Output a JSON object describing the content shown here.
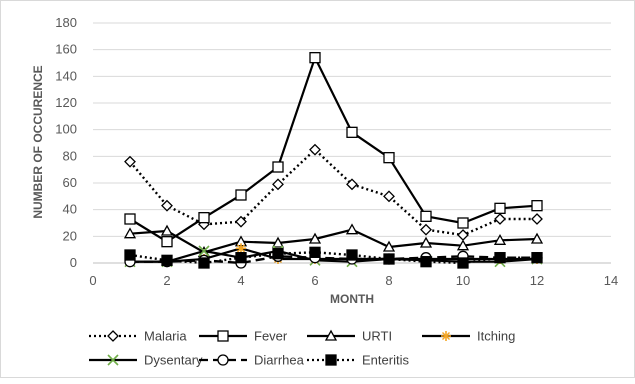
{
  "chart_data": {
    "type": "line",
    "title": "",
    "xlabel": "MONTH",
    "ylabel": "NUMBER OF OCCURENCE",
    "xlim": [
      0,
      14
    ],
    "ylim": [
      0,
      180
    ],
    "x_ticks": [
      0,
      2,
      4,
      6,
      8,
      10,
      12,
      14
    ],
    "y_ticks": [
      0,
      20,
      40,
      60,
      80,
      100,
      120,
      140,
      160,
      180
    ],
    "x": [
      1,
      2,
      3,
      4,
      5,
      6,
      7,
      8,
      9,
      10,
      11,
      12
    ],
    "grid": "horizontal",
    "legend_position": "bottom",
    "series": [
      {
        "name": "Malaria",
        "marker": "diamond",
        "dash": "dotted",
        "color": "#000000",
        "values": [
          76,
          43,
          29,
          31,
          59,
          85,
          59,
          50,
          25,
          21,
          33,
          33
        ]
      },
      {
        "name": "Fever",
        "marker": "square-open",
        "dash": "solid",
        "color": "#000000",
        "values": [
          33,
          16,
          34,
          51,
          72,
          154,
          98,
          79,
          35,
          30,
          41,
          43
        ]
      },
      {
        "name": "URTI",
        "marker": "triangle",
        "dash": "solid",
        "color": "#000000",
        "values": [
          22,
          24,
          8,
          16,
          15,
          18,
          25,
          12,
          15,
          13,
          17,
          18
        ]
      },
      {
        "name": "Itching",
        "marker": "star",
        "dash": "solid",
        "color": "#000000",
        "marker_color": "#f5a623",
        "values": [
          1,
          1,
          3,
          11,
          3,
          3,
          3,
          3,
          3,
          3,
          3,
          3
        ]
      },
      {
        "name": "Dysentary",
        "marker": "x",
        "dash": "solid",
        "color": "#000000",
        "marker_color": "#70ad47",
        "values": [
          1,
          1,
          9,
          4,
          9,
          2,
          1,
          3,
          2,
          1,
          1,
          3
        ]
      },
      {
        "name": "Diarrhea",
        "marker": "circle-open",
        "dash": "dashed",
        "color": "#000000",
        "values": [
          1,
          1,
          2,
          0,
          5,
          4,
          3,
          3,
          4,
          5,
          4,
          4
        ]
      },
      {
        "name": "Enteritis",
        "marker": "square-filled",
        "dash": "dotted",
        "color": "#000000",
        "values": [
          6,
          2,
          0,
          4,
          7,
          8,
          6,
          3,
          1,
          0,
          4,
          4
        ]
      }
    ]
  }
}
